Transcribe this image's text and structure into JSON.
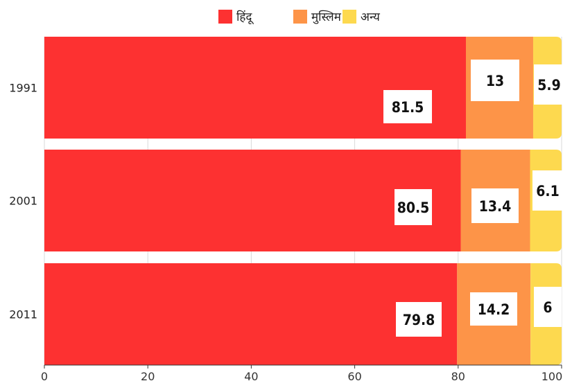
{
  "chart_data": {
    "type": "bar",
    "orientation": "horizontal",
    "stacked": true,
    "categories": [
      "1991",
      "2001",
      "2011"
    ],
    "series": [
      {
        "name": "हिंदू",
        "color": "#fd3131",
        "values": [
          81.5,
          80.5,
          79.8
        ]
      },
      {
        "name": "मुस्लिम",
        "color": "#fd9448",
        "values": [
          13,
          13.4,
          14.2
        ]
      },
      {
        "name": "अन्य",
        "color": "#fdd94f",
        "values": [
          5.9,
          6.1,
          6
        ]
      }
    ],
    "xlim": [
      0,
      100
    ],
    "xticks": [
      "0",
      "20",
      "40",
      "60",
      "80",
      "100"
    ],
    "title": "",
    "xlabel": "",
    "ylabel": "",
    "legend": "top-center",
    "grid": true,
    "data_labels": [
      [
        "81.5",
        "13",
        "5.9"
      ],
      [
        "80.5",
        "13.4",
        "6.1"
      ],
      [
        "79.8",
        "14.2",
        "6"
      ]
    ]
  }
}
